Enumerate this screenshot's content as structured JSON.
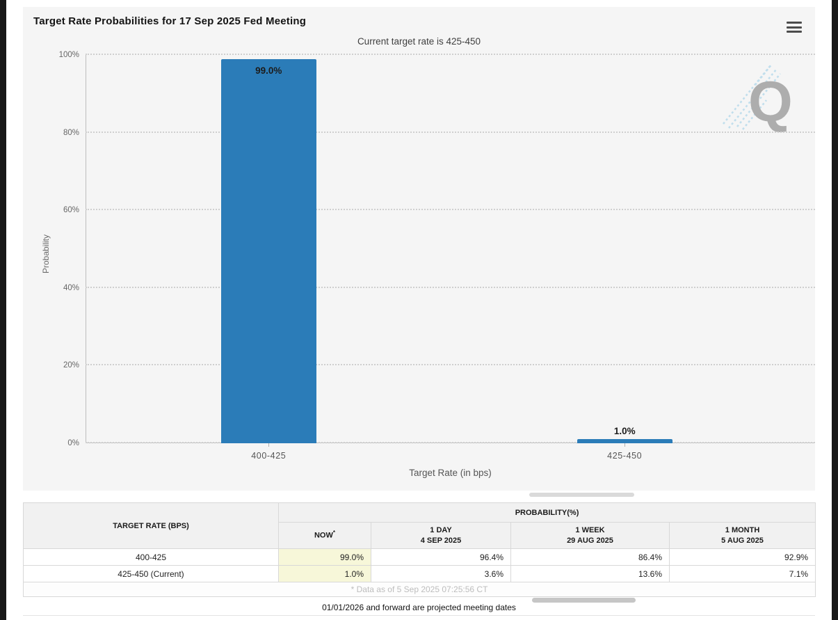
{
  "chart_data": {
    "type": "bar",
    "title": "Target Rate Probabilities for 17 Sep 2025 Fed Meeting",
    "subtitle": "Current target rate is 425-450",
    "xlabel": "Target Rate (in bps)",
    "ylabel": "Probability",
    "categories": [
      "400-425",
      "425-450"
    ],
    "values": [
      99.0,
      1.0
    ],
    "value_labels": [
      "99.0%",
      "1.0%"
    ],
    "ylim": [
      0,
      100
    ],
    "yticks": [
      "0%",
      "20%",
      "40%",
      "60%",
      "80%",
      "100%"
    ],
    "grid": "dotted horizontal",
    "legend": "none",
    "bar_color": "#2b7cb8"
  },
  "page": {
    "menu_icon": "hamburger-icon",
    "watermark_letter": "Q"
  },
  "table": {
    "col1_header": "TARGET RATE (BPS)",
    "group_header": "PROBABILITY(%)",
    "footnote_marker": "*",
    "columns": [
      {
        "label": "NOW",
        "sub": ""
      },
      {
        "label": "1 DAY",
        "sub": "4 SEP 2025"
      },
      {
        "label": "1 WEEK",
        "sub": "29 AUG 2025"
      },
      {
        "label": "1 MONTH",
        "sub": "5 AUG 2025"
      }
    ],
    "rows": [
      {
        "target": "400-425",
        "now": "99.0%",
        "day": "96.4%",
        "week": "86.4%",
        "month": "92.9%"
      },
      {
        "target": "425-450 (Current)",
        "now": "1.0%",
        "day": "3.6%",
        "week": "13.6%",
        "month": "7.1%"
      }
    ],
    "footnote": "* Data as of 5 Sep 2025 07:25:56 CT"
  },
  "footer": {
    "note": "01/01/2026 and forward are projected meeting dates"
  },
  "colors": {
    "bar": "#2b7cb8",
    "now_highlight": "#f7f7d9",
    "panel_bg": "#f5f5f5",
    "edge_bars": "#181818"
  }
}
